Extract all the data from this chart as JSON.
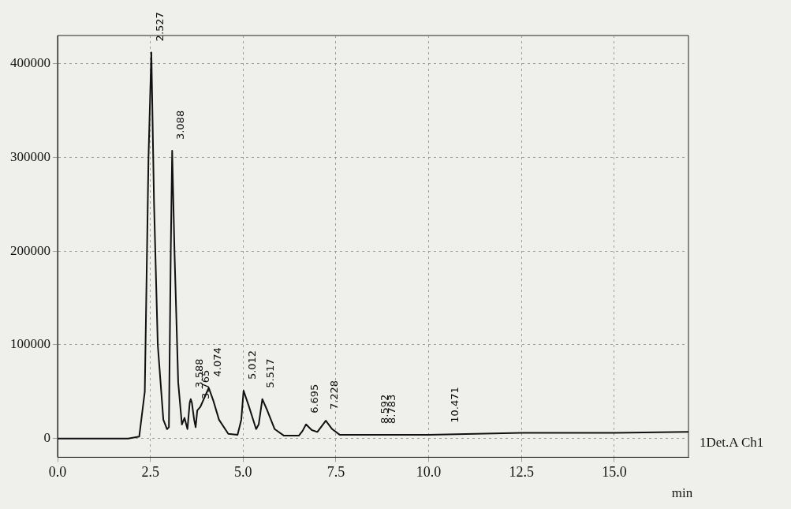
{
  "chart_data": {
    "type": "line",
    "xlabel": "min",
    "x": [
      0,
      1.9,
      2.2,
      2.35,
      2.45,
      2.527,
      2.6,
      2.7,
      2.85,
      2.95,
      3.0,
      3.05,
      3.088,
      3.15,
      3.25,
      3.35,
      3.42,
      3.5,
      3.56,
      3.588,
      3.62,
      3.68,
      3.72,
      3.765,
      3.85,
      4.074,
      4.2,
      4.35,
      4.6,
      4.85,
      4.95,
      5.012,
      5.15,
      5.35,
      5.42,
      5.517,
      5.65,
      5.85,
      6.1,
      6.5,
      6.6,
      6.695,
      6.85,
      7.0,
      7.228,
      7.4,
      7.6,
      8.0,
      10.0,
      12.5,
      15.0,
      17.0
    ],
    "series": [
      {
        "name": "1Det.A Ch1",
        "color": "#111111",
        "values": [
          0,
          0,
          2000,
          50000,
          300000,
          412000,
          250000,
          100000,
          20000,
          10000,
          12000,
          200000,
          307000,
          200000,
          60000,
          15000,
          22000,
          10000,
          38000,
          42000,
          38000,
          20000,
          12000,
          30000,
          34000,
          54000,
          40000,
          20000,
          5000,
          4000,
          20000,
          51000,
          35000,
          10000,
          15000,
          42000,
          30000,
          10000,
          3000,
          3000,
          8000,
          15000,
          9000,
          7000,
          19000,
          10000,
          4000,
          4000,
          4000,
          6000,
          6000,
          7000
        ]
      }
    ],
    "xlim": [
      0,
      17
    ],
    "ylim": [
      -20000,
      430000
    ],
    "xticks": [
      {
        "value": 0,
        "label": "0.0"
      },
      {
        "value": 2.5,
        "label": "2.5"
      },
      {
        "value": 5,
        "label": "5.0"
      },
      {
        "value": 7.5,
        "label": "7.5"
      },
      {
        "value": 10,
        "label": "10.0"
      },
      {
        "value": 12.5,
        "label": "12.5"
      },
      {
        "value": 15,
        "label": "15.0"
      }
    ],
    "yticks": [
      0,
      100000,
      200000,
      300000,
      400000
    ],
    "grid": true,
    "legend": false,
    "marker": "none",
    "line_style": "solid",
    "annotations": [
      {
        "text": "2.527",
        "x": 2.527,
        "y": 412000
      },
      {
        "text": "3.088",
        "x": 3.088,
        "y": 307000
      },
      {
        "text": "3.588",
        "x": 3.588,
        "y": 42000
      },
      {
        "text": "3.765",
        "x": 3.765,
        "y": 30000
      },
      {
        "text": "4.074",
        "x": 4.074,
        "y": 54000
      },
      {
        "text": "5.012",
        "x": 5.012,
        "y": 51000
      },
      {
        "text": "5.517",
        "x": 5.517,
        "y": 42000
      },
      {
        "text": "6.695",
        "x": 6.695,
        "y": 15000
      },
      {
        "text": "7.228",
        "x": 7.228,
        "y": 19000
      },
      {
        "text": "8.592",
        "x": 8.592,
        "y": 4000
      },
      {
        "text": "8.783",
        "x": 8.783,
        "y": 4000
      },
      {
        "text": "10.471",
        "x": 10.471,
        "y": 5000
      }
    ]
  }
}
